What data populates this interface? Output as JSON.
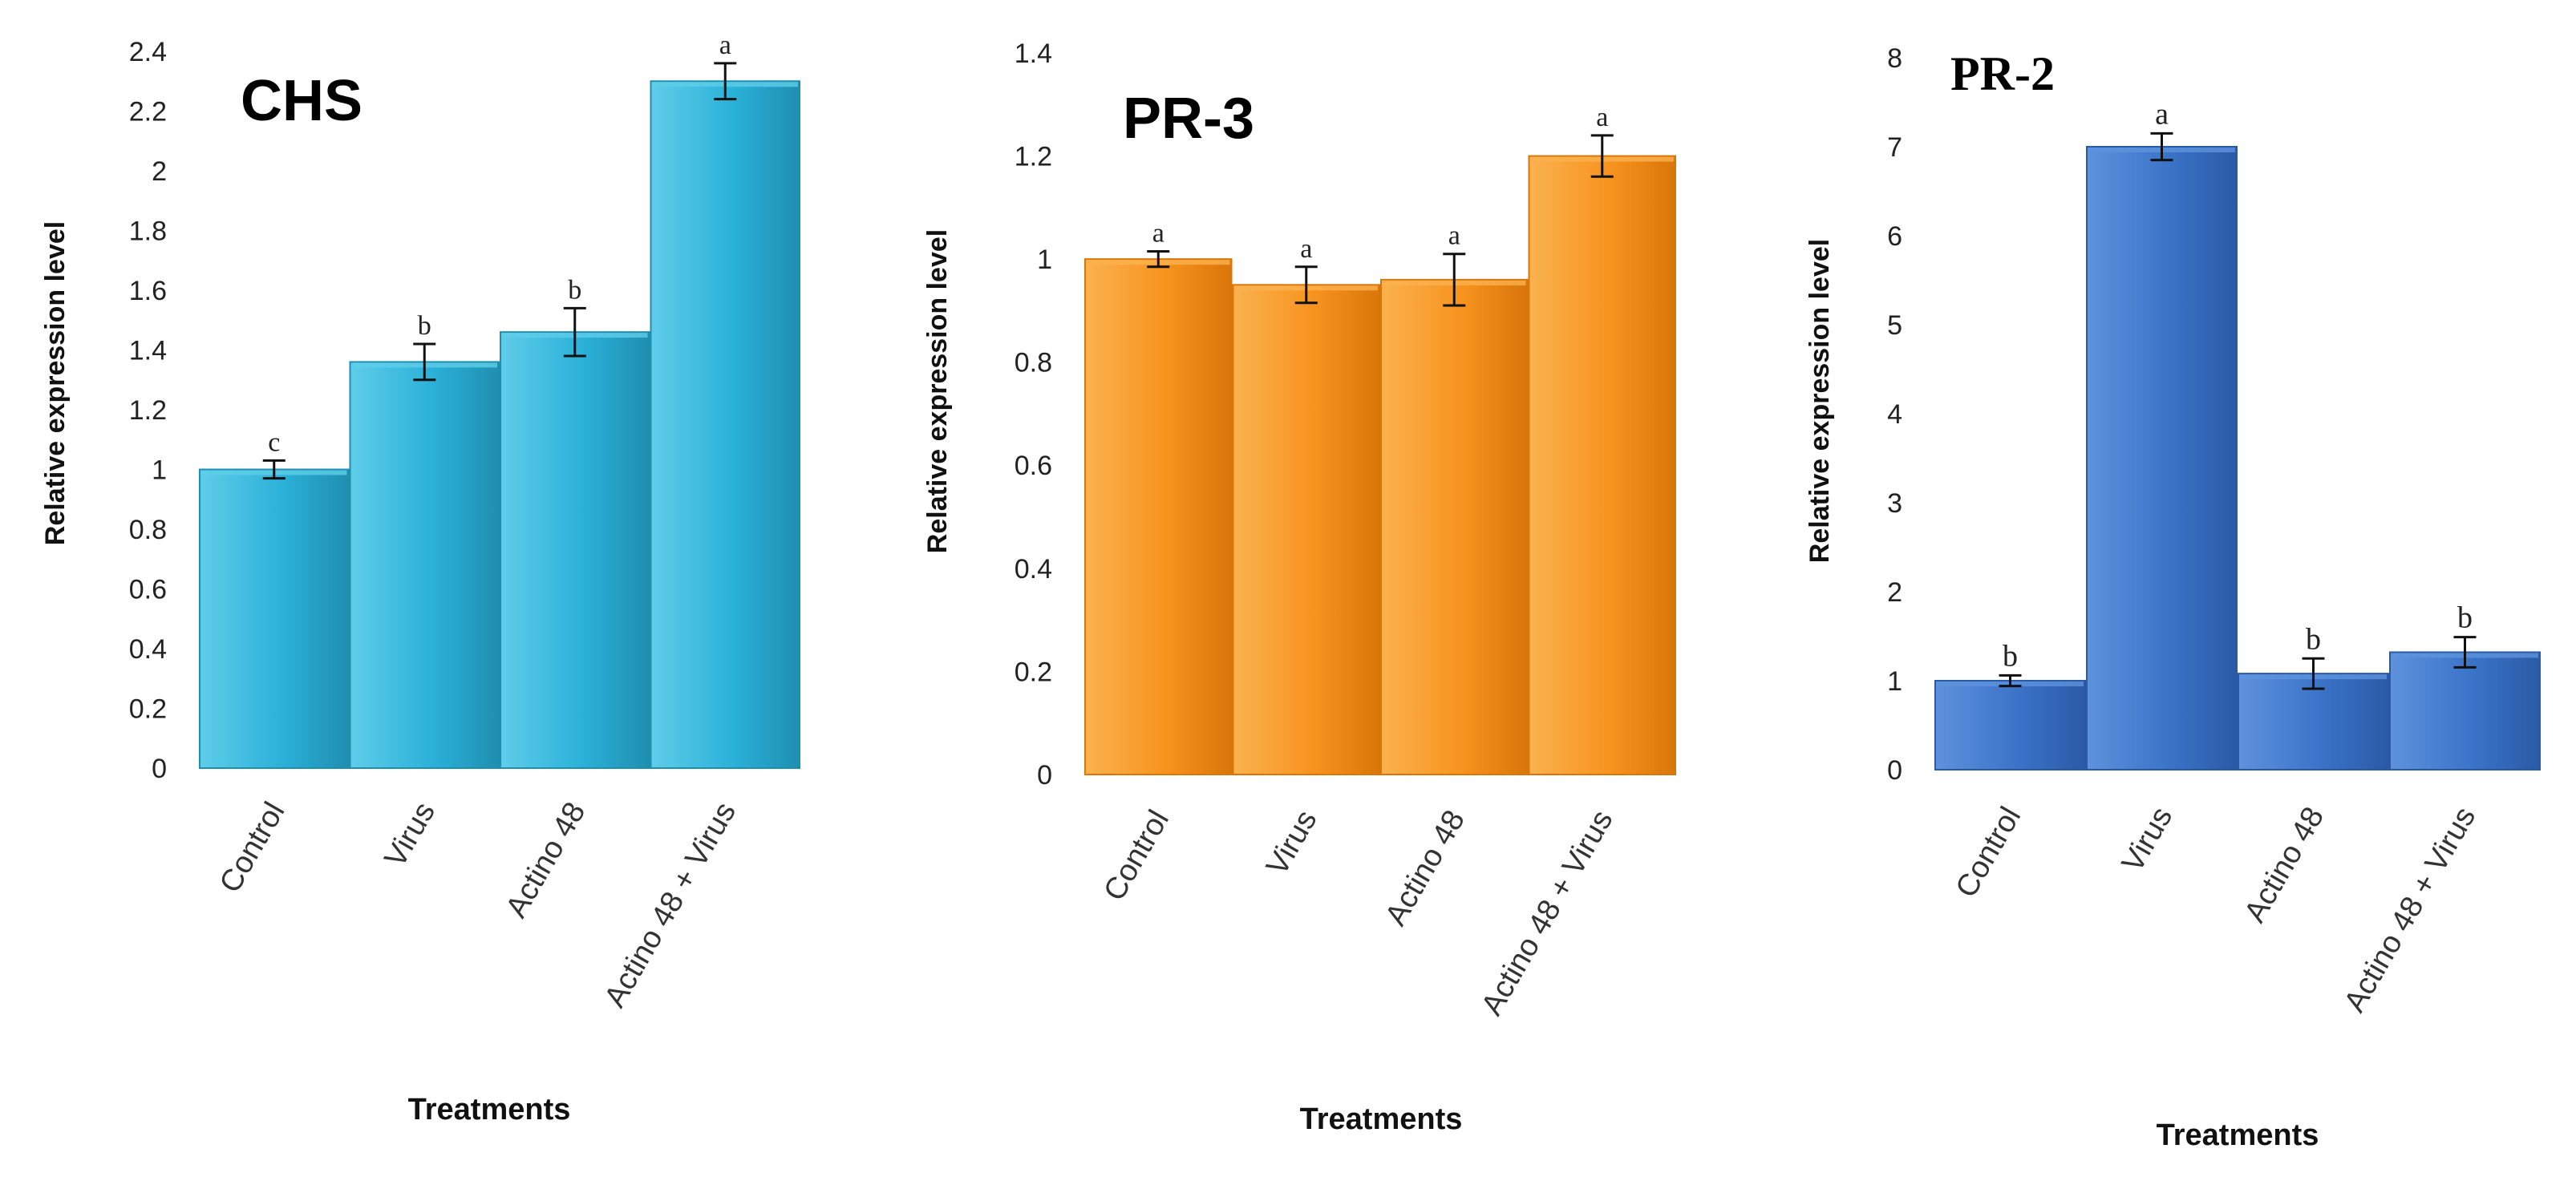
{
  "chart_data": [
    {
      "type": "bar",
      "title": "CHS",
      "xlabel": "Treatments",
      "ylabel": "Relative expression level",
      "categories": [
        "Control",
        "Virus",
        "Actino 48",
        "Actino 48 + Virus"
      ],
      "values": [
        1.0,
        1.36,
        1.46,
        2.3
      ],
      "errors": [
        0.03,
        0.06,
        0.08,
        0.06
      ],
      "significance": [
        "c",
        "b",
        "b",
        "a"
      ],
      "ylim": [
        0,
        2.4
      ],
      "yticks": [
        "0",
        "0.2",
        "0.4",
        "0.6",
        "0.8",
        "1",
        "1.2",
        "1.4",
        "1.6",
        "1.8",
        "2",
        "2.2",
        "2.4"
      ],
      "ytick_values": [
        0,
        0.2,
        0.4,
        0.6,
        0.8,
        1,
        1.2,
        1.4,
        1.6,
        1.8,
        2,
        2.2,
        2.4
      ],
      "color": "#2bb1d9",
      "color_light": "#5fcde9",
      "color_dark": "#1f8fb0"
    },
    {
      "type": "bar",
      "title": "PR-3",
      "xlabel": "Treatments",
      "ylabel": "Relative expression level",
      "categories": [
        "Control",
        "Virus",
        "Actino 48",
        "Actino 48 + Virus"
      ],
      "values": [
        1.0,
        0.95,
        0.96,
        1.2
      ],
      "errors": [
        0.015,
        0.035,
        0.05,
        0.04
      ],
      "significance": [
        "a",
        "a",
        "a",
        "a"
      ],
      "ylim": [
        0,
        1.4
      ],
      "yticks": [
        "0",
        "0.2",
        "0.4",
        "0.6",
        "0.8",
        "1",
        "1.2",
        "1.4"
      ],
      "ytick_values": [
        0,
        0.2,
        0.4,
        0.6,
        0.8,
        1,
        1.2,
        1.4
      ],
      "color": "#f7931e",
      "color_light": "#fbb24f",
      "color_dark": "#d9760a"
    },
    {
      "type": "bar",
      "title": "PR-2",
      "xlabel": "Treatments",
      "ylabel": "Relative expression level",
      "categories": [
        "Control",
        "Virus",
        "Actino 48",
        "Actino 48 + Virus"
      ],
      "values": [
        1.0,
        7.0,
        1.08,
        1.32
      ],
      "errors": [
        0.06,
        0.15,
        0.17,
        0.17
      ],
      "significance": [
        "b",
        "a",
        "b",
        "b"
      ],
      "ylim": [
        0,
        8
      ],
      "yticks": [
        "0",
        "1",
        "2",
        "3",
        "4",
        "5",
        "6",
        "7",
        "8"
      ],
      "ytick_values": [
        0,
        1,
        2,
        3,
        4,
        5,
        6,
        7,
        8
      ],
      "color": "#3b73c8",
      "color_light": "#5e92dc",
      "color_dark": "#2a5aa6"
    }
  ]
}
